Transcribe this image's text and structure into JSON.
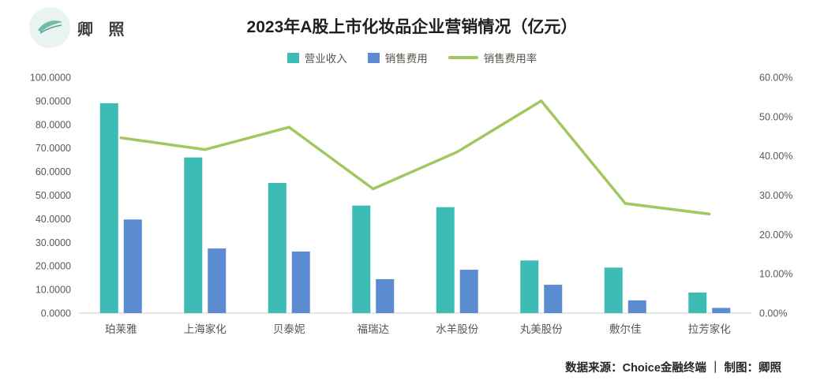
{
  "logo": {
    "text": "卿 照"
  },
  "title": "2023年A股上市化妆品企业营销情况（亿元）",
  "legend": [
    {
      "label": "营业收入",
      "color": "#3cbcb4",
      "type": "bar"
    },
    {
      "label": "销售费用",
      "color": "#5b8bd0",
      "type": "bar"
    },
    {
      "label": "销售费用率",
      "color": "#a2c75e",
      "type": "line"
    }
  ],
  "footer": "数据来源：Choice金融终端 ｜ 制图：卿照",
  "colors": {
    "revenue_bar": "#3cbcb4",
    "expense_bar": "#5b8bd0",
    "ratio_line": "#a2c75e",
    "axis_text": "#5f574d",
    "axis_line": "#d0cdc8"
  },
  "chart_data": {
    "type": "bar",
    "subtype": "grouped-bars-with-line",
    "title": "2023年A股上市化妆品企业营销情况（亿元）",
    "categories": [
      "珀莱雅",
      "上海家化",
      "贝泰妮",
      "福瑞达",
      "水羊股份",
      "丸美股份",
      "敷尔佳",
      "拉芳家化"
    ],
    "series": [
      {
        "name": "营业收入",
        "type": "bar",
        "axis": "left",
        "color": "#3cbcb4",
        "values": [
          89.0,
          66.0,
          55.2,
          45.6,
          44.9,
          22.3,
          19.3,
          8.7
        ]
      },
      {
        "name": "销售费用",
        "type": "bar",
        "axis": "left",
        "color": "#5b8bd0",
        "values": [
          39.7,
          27.4,
          26.1,
          14.4,
          18.4,
          12.0,
          5.4,
          2.2
        ]
      },
      {
        "name": "销售费用率",
        "type": "line",
        "axis": "right",
        "color": "#a2c75e",
        "values": [
          44.6,
          41.6,
          47.3,
          31.6,
          41.0,
          54.0,
          27.9,
          25.2
        ]
      }
    ],
    "left_axis": {
      "min": 0,
      "max": 100,
      "ticks": [
        "0.0000",
        "10.0000",
        "20.0000",
        "30.0000",
        "40.0000",
        "50.0000",
        "60.0000",
        "70.0000",
        "80.0000",
        "90.0000",
        "100.0000"
      ]
    },
    "right_axis": {
      "min": 0,
      "max": 60,
      "unit": "%",
      "ticks": [
        "0.00%",
        "10.00%",
        "20.00%",
        "30.00%",
        "40.00%",
        "50.00%",
        "60.00%"
      ]
    },
    "grid": false,
    "legend_position": "top"
  }
}
